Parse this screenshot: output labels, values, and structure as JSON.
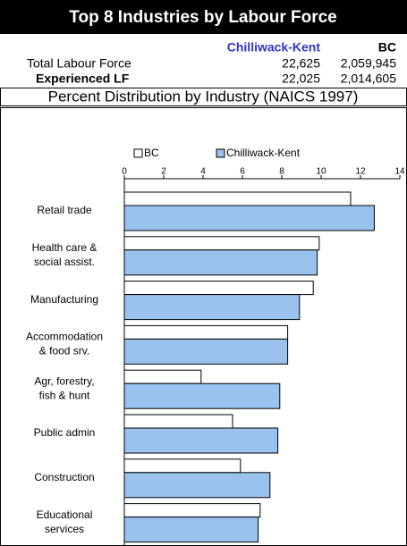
{
  "header": {
    "title": "Top 8 Industries by Labour Force",
    "columns": [
      "Chilliwack-Kent",
      "BC"
    ],
    "rows": [
      {
        "label": "Total Labour Force",
        "values": [
          "22,625",
          "2,059,945"
        ]
      },
      {
        "label": "Experienced LF",
        "values": [
          "22,025",
          "2,014,605"
        ]
      }
    ],
    "subtitle": "Percent Distribution by Industry (NAICS 1997)"
  },
  "chart_data": {
    "type": "barh",
    "categories": [
      [
        "Retail trade"
      ],
      [
        "Health care &",
        "social assist."
      ],
      [
        "Manufacturing"
      ],
      [
        "Accommodation",
        "& food srv."
      ],
      [
        "Agr, forestry,",
        "fish & hunt"
      ],
      [
        "Public admin"
      ],
      [
        "Construction"
      ],
      [
        "Educational",
        "services"
      ]
    ],
    "series": [
      {
        "name": "BC",
        "color": "#ffffff",
        "values": [
          11.5,
          9.9,
          9.6,
          8.3,
          3.9,
          5.5,
          5.9,
          6.9
        ]
      },
      {
        "name": "Chilliwack-Kent",
        "color": "#99c2ee",
        "values": [
          12.7,
          9.8,
          8.9,
          8.3,
          7.9,
          7.8,
          7.4,
          6.8
        ]
      }
    ],
    "xlim": [
      0,
      14
    ],
    "xticks": [
      0,
      2,
      4,
      6,
      8,
      10,
      12,
      14
    ],
    "legend": "top"
  }
}
